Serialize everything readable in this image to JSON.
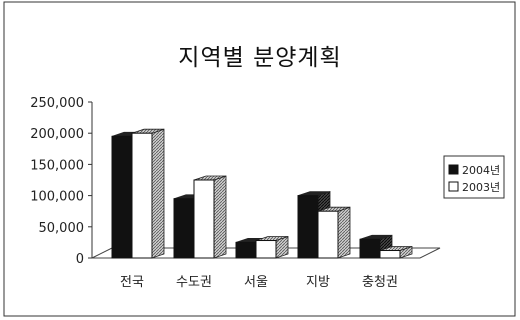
{
  "chart_data": {
    "type": "bar",
    "title": "지역별 분양계획",
    "categories": [
      "전국",
      "수도권",
      "서울",
      "지방",
      "충청권"
    ],
    "series": [
      {
        "name": "2004년",
        "color": "#111111",
        "values": [
          195000,
          95000,
          25000,
          100000,
          30000
        ]
      },
      {
        "name": "2003년",
        "color": "#ffffff",
        "values": [
          200000,
          125000,
          28000,
          75000,
          12000
        ]
      }
    ],
    "y_ticks": [
      "0",
      "50,000",
      "100,000",
      "150,000",
      "200,000",
      "250,000"
    ],
    "ylim": [
      0,
      250000
    ],
    "xlabel": "",
    "ylabel": "",
    "legend_position": "right",
    "style": "3d-bar"
  }
}
